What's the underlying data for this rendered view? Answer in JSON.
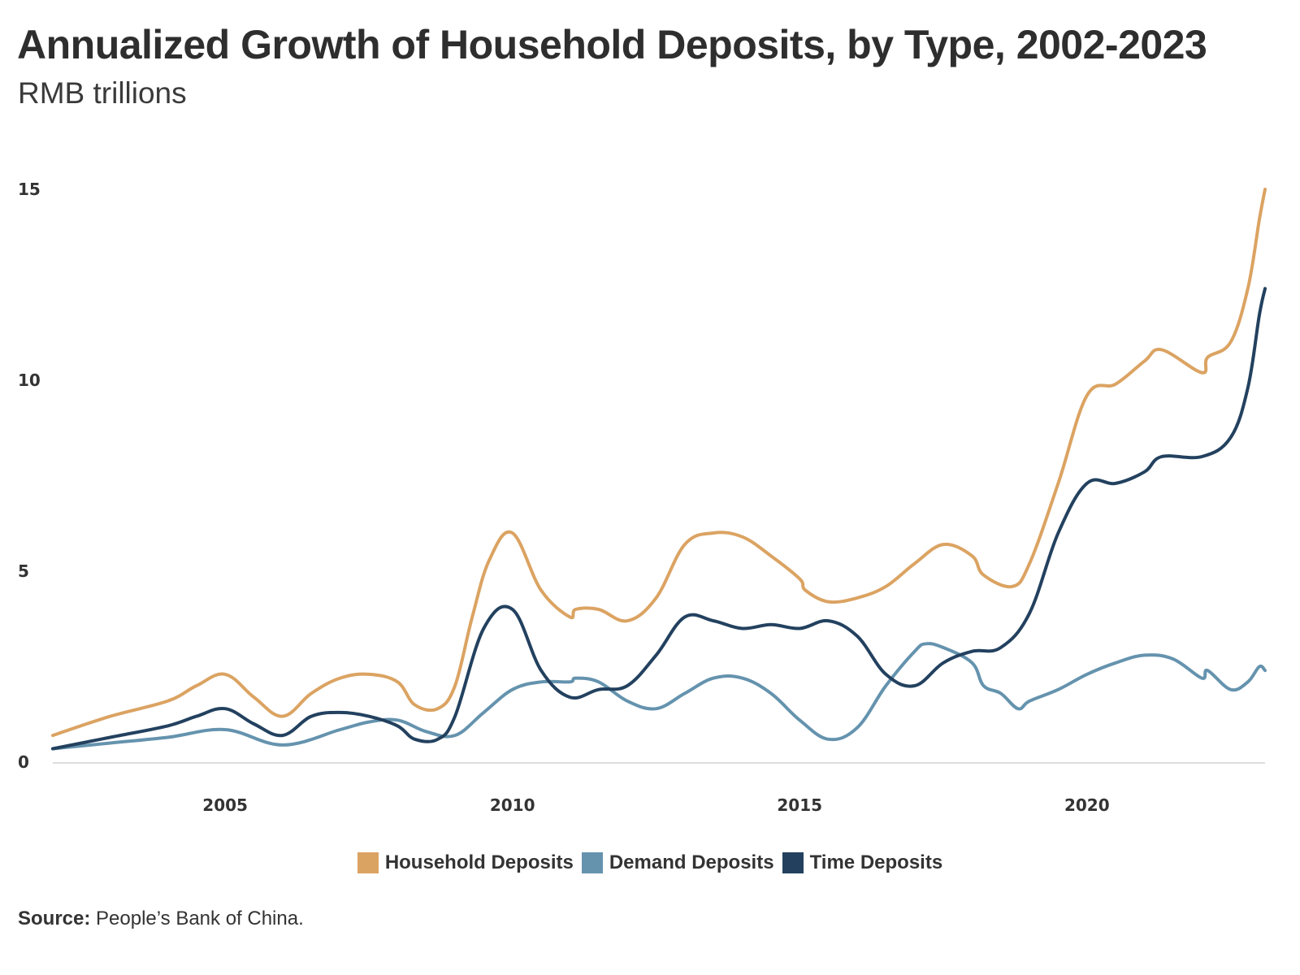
{
  "title": "Annualized Growth of Household Deposits, by Type, 2002-2023",
  "subtitle": "RMB trillions",
  "source_label": "Source:",
  "source_text": " People’s Bank of China.",
  "colors": {
    "household": "#DBA362",
    "demand": "#6593AE",
    "time": "#23415F",
    "axis": "#dddddd"
  },
  "chart_data": {
    "type": "line",
    "title": "Annualized Growth of Household Deposits, by Type, 2002-2023",
    "subtitle": "RMB trillions",
    "xlabel": "",
    "ylabel": "",
    "xlim": [
      2002.0,
      2023.1
    ],
    "ylim": [
      0,
      15
    ],
    "x_ticks": [
      2005,
      2010,
      2015,
      2020
    ],
    "y_ticks": [
      0,
      5,
      10,
      15
    ],
    "grid": false,
    "legend_position": "bottom",
    "series": [
      {
        "name": "Household Deposits",
        "color": "#DBA362",
        "points": [
          [
            2002.0,
            0.7
          ],
          [
            2003.0,
            1.2
          ],
          [
            2004.0,
            1.6
          ],
          [
            2004.5,
            2.0
          ],
          [
            2005.0,
            2.3
          ],
          [
            2005.5,
            1.7
          ],
          [
            2006.0,
            1.2
          ],
          [
            2006.5,
            1.8
          ],
          [
            2007.0,
            2.2
          ],
          [
            2007.5,
            2.3
          ],
          [
            2008.0,
            2.1
          ],
          [
            2008.3,
            1.5
          ],
          [
            2008.7,
            1.4
          ],
          [
            2009.0,
            2.0
          ],
          [
            2009.3,
            3.8
          ],
          [
            2009.6,
            5.3
          ],
          [
            2010.0,
            6.0
          ],
          [
            2010.5,
            4.5
          ],
          [
            2011.0,
            3.8
          ],
          [
            2011.1,
            4.0
          ],
          [
            2011.5,
            4.0
          ],
          [
            2012.0,
            3.7
          ],
          [
            2012.5,
            4.3
          ],
          [
            2013.0,
            5.7
          ],
          [
            2013.5,
            6.0
          ],
          [
            2014.0,
            5.9
          ],
          [
            2014.5,
            5.4
          ],
          [
            2015.0,
            4.8
          ],
          [
            2015.1,
            4.5
          ],
          [
            2015.5,
            4.2
          ],
          [
            2016.0,
            4.3
          ],
          [
            2016.5,
            4.6
          ],
          [
            2017.0,
            5.2
          ],
          [
            2017.5,
            5.7
          ],
          [
            2018.0,
            5.4
          ],
          [
            2018.2,
            4.9
          ],
          [
            2018.7,
            4.6
          ],
          [
            2019.0,
            5.2
          ],
          [
            2019.5,
            7.3
          ],
          [
            2020.0,
            9.6
          ],
          [
            2020.5,
            9.9
          ],
          [
            2021.0,
            10.5
          ],
          [
            2021.3,
            10.8
          ],
          [
            2022.0,
            10.2
          ],
          [
            2022.1,
            10.6
          ],
          [
            2022.5,
            11.0
          ],
          [
            2022.8,
            12.4
          ],
          [
            2023.0,
            14.2
          ],
          [
            2023.1,
            15.0
          ]
        ]
      },
      {
        "name": "Demand Deposits",
        "color": "#6593AE",
        "points": [
          [
            2002.0,
            0.35
          ],
          [
            2003.0,
            0.5
          ],
          [
            2004.0,
            0.65
          ],
          [
            2005.0,
            0.85
          ],
          [
            2006.0,
            0.45
          ],
          [
            2007.0,
            0.85
          ],
          [
            2007.5,
            1.05
          ],
          [
            2008.0,
            1.1
          ],
          [
            2008.5,
            0.8
          ],
          [
            2009.0,
            0.7
          ],
          [
            2009.5,
            1.3
          ],
          [
            2010.0,
            1.9
          ],
          [
            2010.5,
            2.1
          ],
          [
            2011.0,
            2.1
          ],
          [
            2011.1,
            2.2
          ],
          [
            2011.5,
            2.1
          ],
          [
            2012.0,
            1.6
          ],
          [
            2012.5,
            1.4
          ],
          [
            2013.0,
            1.8
          ],
          [
            2013.5,
            2.2
          ],
          [
            2014.0,
            2.2
          ],
          [
            2014.5,
            1.8
          ],
          [
            2015.0,
            1.1
          ],
          [
            2015.5,
            0.6
          ],
          [
            2016.0,
            0.9
          ],
          [
            2016.5,
            2.0
          ],
          [
            2017.0,
            2.9
          ],
          [
            2017.2,
            3.1
          ],
          [
            2017.5,
            3.0
          ],
          [
            2018.0,
            2.6
          ],
          [
            2018.2,
            2.0
          ],
          [
            2018.5,
            1.8
          ],
          [
            2018.8,
            1.4
          ],
          [
            2019.0,
            1.6
          ],
          [
            2019.5,
            1.9
          ],
          [
            2020.0,
            2.3
          ],
          [
            2020.5,
            2.6
          ],
          [
            2021.0,
            2.8
          ],
          [
            2021.5,
            2.7
          ],
          [
            2022.0,
            2.2
          ],
          [
            2022.1,
            2.4
          ],
          [
            2022.5,
            1.9
          ],
          [
            2022.8,
            2.1
          ],
          [
            2023.0,
            2.5
          ],
          [
            2023.1,
            2.4
          ]
        ]
      },
      {
        "name": "Time Deposits",
        "color": "#23415F",
        "points": [
          [
            2002.0,
            0.35
          ],
          [
            2003.0,
            0.65
          ],
          [
            2004.0,
            0.95
          ],
          [
            2004.5,
            1.2
          ],
          [
            2005.0,
            1.4
          ],
          [
            2005.5,
            1.0
          ],
          [
            2006.0,
            0.7
          ],
          [
            2006.5,
            1.2
          ],
          [
            2007.0,
            1.3
          ],
          [
            2007.5,
            1.2
          ],
          [
            2008.0,
            0.95
          ],
          [
            2008.3,
            0.6
          ],
          [
            2008.7,
            0.6
          ],
          [
            2009.0,
            1.2
          ],
          [
            2009.5,
            3.5
          ],
          [
            2010.0,
            4.0
          ],
          [
            2010.5,
            2.4
          ],
          [
            2011.0,
            1.7
          ],
          [
            2011.5,
            1.9
          ],
          [
            2012.0,
            2.0
          ],
          [
            2012.5,
            2.8
          ],
          [
            2013.0,
            3.8
          ],
          [
            2013.5,
            3.7
          ],
          [
            2014.0,
            3.5
          ],
          [
            2014.5,
            3.6
          ],
          [
            2015.0,
            3.5
          ],
          [
            2015.5,
            3.7
          ],
          [
            2016.0,
            3.3
          ],
          [
            2016.5,
            2.3
          ],
          [
            2017.0,
            2.0
          ],
          [
            2017.5,
            2.6
          ],
          [
            2018.0,
            2.9
          ],
          [
            2018.5,
            3.0
          ],
          [
            2019.0,
            3.9
          ],
          [
            2019.5,
            6.0
          ],
          [
            2020.0,
            7.3
          ],
          [
            2020.5,
            7.3
          ],
          [
            2021.0,
            7.6
          ],
          [
            2021.3,
            8.0
          ],
          [
            2022.0,
            8.0
          ],
          [
            2022.5,
            8.5
          ],
          [
            2022.8,
            9.8
          ],
          [
            2023.0,
            11.7
          ],
          [
            2023.1,
            12.4
          ]
        ]
      }
    ]
  }
}
